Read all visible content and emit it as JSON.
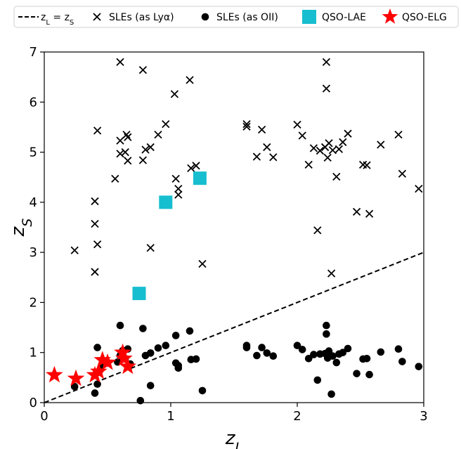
{
  "chart_data": {
    "type": "scatter",
    "xlabel": "z_L",
    "ylabel": "z_S",
    "xlim": [
      0,
      3
    ],
    "ylim": [
      0,
      7
    ],
    "xticks": [
      0,
      1,
      2,
      3
    ],
    "yticks": [
      0,
      1,
      2,
      3,
      4,
      5,
      6,
      7
    ],
    "legend_position": "top, outside plot",
    "legend": [
      {
        "label": "z_L = z_S",
        "marker": "dashed-line",
        "color": "#000000"
      },
      {
        "label": "SLEs (as Lyα)",
        "marker": "x",
        "color": "#000000"
      },
      {
        "label": "SLEs (as OII)",
        "marker": "circle",
        "color": "#000000"
      },
      {
        "label": "QSO-LAE",
        "marker": "square",
        "color": "#17becf"
      },
      {
        "label": "QSO-ELG",
        "marker": "star",
        "color": "#ff0000"
      }
    ],
    "line": {
      "label": "z_L = z_S",
      "x": [
        0,
        3
      ],
      "y": [
        0,
        3
      ],
      "style": "dashed",
      "color": "#000000"
    },
    "series": [
      {
        "name": "SLEs (as Lyα)",
        "marker": "x",
        "color": "#000000",
        "points": [
          [
            0.24,
            3.04
          ],
          [
            0.4,
            4.02
          ],
          [
            0.4,
            3.57
          ],
          [
            0.42,
            3.16
          ],
          [
            0.4,
            2.61
          ],
          [
            0.42,
            5.43
          ],
          [
            0.56,
            4.47
          ],
          [
            0.6,
            6.8
          ],
          [
            0.6,
            5.23
          ],
          [
            0.6,
            4.97
          ],
          [
            0.64,
            5.0
          ],
          [
            0.65,
            5.35
          ],
          [
            0.66,
            5.3
          ],
          [
            0.66,
            4.83
          ],
          [
            0.78,
            6.64
          ],
          [
            0.78,
            4.84
          ],
          [
            0.8,
            5.05
          ],
          [
            0.84,
            3.09
          ],
          [
            0.84,
            5.1
          ],
          [
            0.9,
            5.35
          ],
          [
            0.96,
            5.56
          ],
          [
            1.03,
            6.16
          ],
          [
            1.04,
            4.47
          ],
          [
            1.06,
            4.27
          ],
          [
            1.06,
            4.15
          ],
          [
            1.15,
            6.44
          ],
          [
            1.16,
            4.68
          ],
          [
            1.2,
            4.73
          ],
          [
            1.25,
            2.77
          ],
          [
            1.6,
            5.56
          ],
          [
            1.6,
            5.51
          ],
          [
            1.68,
            4.91
          ],
          [
            1.72,
            5.45
          ],
          [
            1.76,
            5.1
          ],
          [
            1.81,
            4.9
          ],
          [
            2.0,
            5.55
          ],
          [
            2.04,
            5.33
          ],
          [
            2.09,
            4.75
          ],
          [
            2.13,
            5.08
          ],
          [
            2.16,
            3.44
          ],
          [
            2.18,
            5.03
          ],
          [
            2.22,
            5.1
          ],
          [
            2.23,
            6.8
          ],
          [
            2.23,
            6.27
          ],
          [
            2.24,
            4.89
          ],
          [
            2.25,
            5.18
          ],
          [
            2.27,
            2.58
          ],
          [
            2.28,
            5.04
          ],
          [
            2.31,
            4.51
          ],
          [
            2.33,
            5.06
          ],
          [
            2.36,
            5.2
          ],
          [
            2.4,
            5.37
          ],
          [
            2.47,
            3.81
          ],
          [
            2.52,
            4.75
          ],
          [
            2.55,
            4.74
          ],
          [
            2.57,
            3.77
          ],
          [
            2.66,
            5.15
          ],
          [
            2.8,
            5.35
          ],
          [
            2.83,
            4.57
          ],
          [
            2.96,
            4.27
          ]
        ]
      },
      {
        "name": "SLEs (as OII)",
        "marker": "circle",
        "color": "#000000",
        "points": [
          [
            0.24,
            0.32
          ],
          [
            0.4,
            0.19
          ],
          [
            0.42,
            1.1
          ],
          [
            0.42,
            0.6
          ],
          [
            0.42,
            0.37
          ],
          [
            0.46,
            0.75
          ],
          [
            0.58,
            0.81
          ],
          [
            0.6,
            1.54
          ],
          [
            0.6,
            0.94
          ],
          [
            0.62,
            1.04
          ],
          [
            0.64,
            0.88
          ],
          [
            0.66,
            1.07
          ],
          [
            0.68,
            0.77
          ],
          [
            0.76,
            0.04
          ],
          [
            0.78,
            1.48
          ],
          [
            0.8,
            0.94
          ],
          [
            0.84,
            0.99
          ],
          [
            0.84,
            0.34
          ],
          [
            0.9,
            1.09
          ],
          [
            0.96,
            1.14
          ],
          [
            1.04,
            1.34
          ],
          [
            1.04,
            0.79
          ],
          [
            1.06,
            0.69
          ],
          [
            1.06,
            0.74
          ],
          [
            1.15,
            1.43
          ],
          [
            1.16,
            0.86
          ],
          [
            1.2,
            0.87
          ],
          [
            1.25,
            0.24
          ],
          [
            1.6,
            1.14
          ],
          [
            1.6,
            1.1
          ],
          [
            1.68,
            0.94
          ],
          [
            1.72,
            1.1
          ],
          [
            1.76,
            0.99
          ],
          [
            1.81,
            0.93
          ],
          [
            2.0,
            1.14
          ],
          [
            2.04,
            1.06
          ],
          [
            2.09,
            0.88
          ],
          [
            2.13,
            0.96
          ],
          [
            2.16,
            0.45
          ],
          [
            2.18,
            0.97
          ],
          [
            2.22,
            0.98
          ],
          [
            2.23,
            1.54
          ],
          [
            2.23,
            1.37
          ],
          [
            2.24,
            0.89
          ],
          [
            2.25,
            1.03
          ],
          [
            2.27,
            0.17
          ],
          [
            2.28,
            0.93
          ],
          [
            2.31,
            0.8
          ],
          [
            2.33,
            0.97
          ],
          [
            2.36,
            1.0
          ],
          [
            2.4,
            1.08
          ],
          [
            2.47,
            0.58
          ],
          [
            2.52,
            0.87
          ],
          [
            2.55,
            0.88
          ],
          [
            2.57,
            0.56
          ],
          [
            2.66,
            1.01
          ],
          [
            2.8,
            1.07
          ],
          [
            2.83,
            0.82
          ],
          [
            2.96,
            0.72
          ]
        ]
      },
      {
        "name": "QSO-LAE",
        "marker": "square",
        "color": "#17becf",
        "points": [
          [
            0.75,
            2.18
          ],
          [
            0.96,
            4.0
          ],
          [
            1.23,
            4.48
          ]
        ]
      },
      {
        "name": "QSO-ELG",
        "marker": "star",
        "color": "#ff0000",
        "points": [
          [
            0.08,
            0.55
          ],
          [
            0.25,
            0.48
          ],
          [
            0.4,
            0.55
          ],
          [
            0.43,
            0.62
          ],
          [
            0.46,
            0.85
          ],
          [
            0.5,
            0.8
          ],
          [
            0.62,
            1.0
          ],
          [
            0.63,
            0.88
          ],
          [
            0.66,
            0.72
          ]
        ]
      }
    ]
  }
}
